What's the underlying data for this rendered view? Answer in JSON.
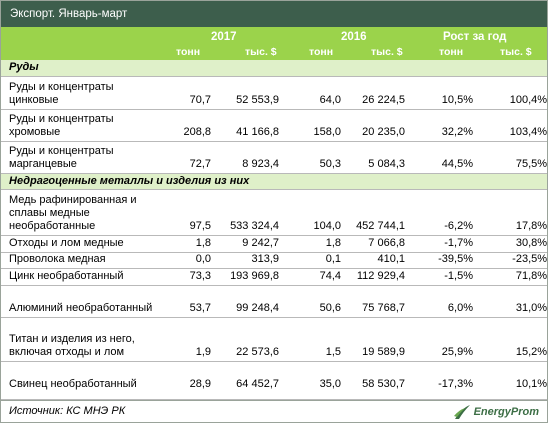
{
  "title": "Экспорт. Январь-март",
  "header": {
    "y2017": "2017",
    "y2016": "2016",
    "growth": "Рост за год",
    "unit_tonnes": "тонн",
    "unit_thousand_usd": "тыс. $"
  },
  "sections": [
    {
      "title": "Руды",
      "rows": [
        {
          "name": "Руды и концентраты цинковые",
          "t2017": "70,7",
          "usd2017": "52 553,9",
          "t2016": "64,0",
          "usd2016": "26 224,5",
          "gt": "10,5%",
          "gusd": "100,4%"
        },
        {
          "name": "Руды и концентраты хромовые",
          "t2017": "208,8",
          "usd2017": "41 166,8",
          "t2016": "158,0",
          "usd2016": "20 235,0",
          "gt": "32,2%",
          "gusd": "103,4%"
        },
        {
          "name": "Руды и концентраты марганцевые",
          "t2017": "72,7",
          "usd2017": "8 923,4",
          "t2016": "50,3",
          "usd2016": "5 084,3",
          "gt": "44,5%",
          "gusd": "75,5%"
        }
      ]
    },
    {
      "title": "Недрагоценные металлы и изделия из них",
      "rows": [
        {
          "name": "Медь рафинированная и сплавы медные необработанные",
          "t2017": "97,5",
          "usd2017": "533 324,4",
          "t2016": "104,0",
          "usd2016": "452 744,1",
          "gt": "-6,2%",
          "gusd": "17,8%"
        },
        {
          "name": "Отходы и лом медные",
          "t2017": "1,8",
          "usd2017": "9 242,7",
          "t2016": "1,8",
          "usd2016": "7 066,8",
          "gt": "-1,7%",
          "gusd": "30,8%"
        },
        {
          "name": "Проволока медная",
          "t2017": "0,0",
          "usd2017": "313,9",
          "t2016": "0,1",
          "usd2016": "410,1",
          "gt": "-39,5%",
          "gusd": "-23,5%"
        },
        {
          "name": "Цинк необработанный",
          "t2017": "73,3",
          "usd2017": "193 969,8",
          "t2016": "74,4",
          "usd2016": "112 929,4",
          "gt": "-1,5%",
          "gusd": "71,8%"
        },
        {
          "name": "Алюминий необработанный",
          "t2017": "53,7",
          "usd2017": "99 248,4",
          "t2016": "50,6",
          "usd2016": "75 768,7",
          "gt": "6,0%",
          "gusd": "31,0%"
        },
        {
          "name": "Титан и изделия из него, включая отходы и лом",
          "t2017": "1,9",
          "usd2017": "22 573,6",
          "t2016": "1,5",
          "usd2016": "19 589,9",
          "gt": "25,9%",
          "gusd": "15,2%"
        },
        {
          "name": "Свинец необработанный",
          "t2017": "28,9",
          "usd2017": "64 452,7",
          "t2016": "35,0",
          "usd2016": "58 530,7",
          "gt": "-17,3%",
          "gusd": "10,1%"
        }
      ]
    }
  ],
  "footer": {
    "source": "Источник: КС МНЭ РК",
    "brand": "EnergyProm",
    "brand_color": "#3c6e45"
  }
}
